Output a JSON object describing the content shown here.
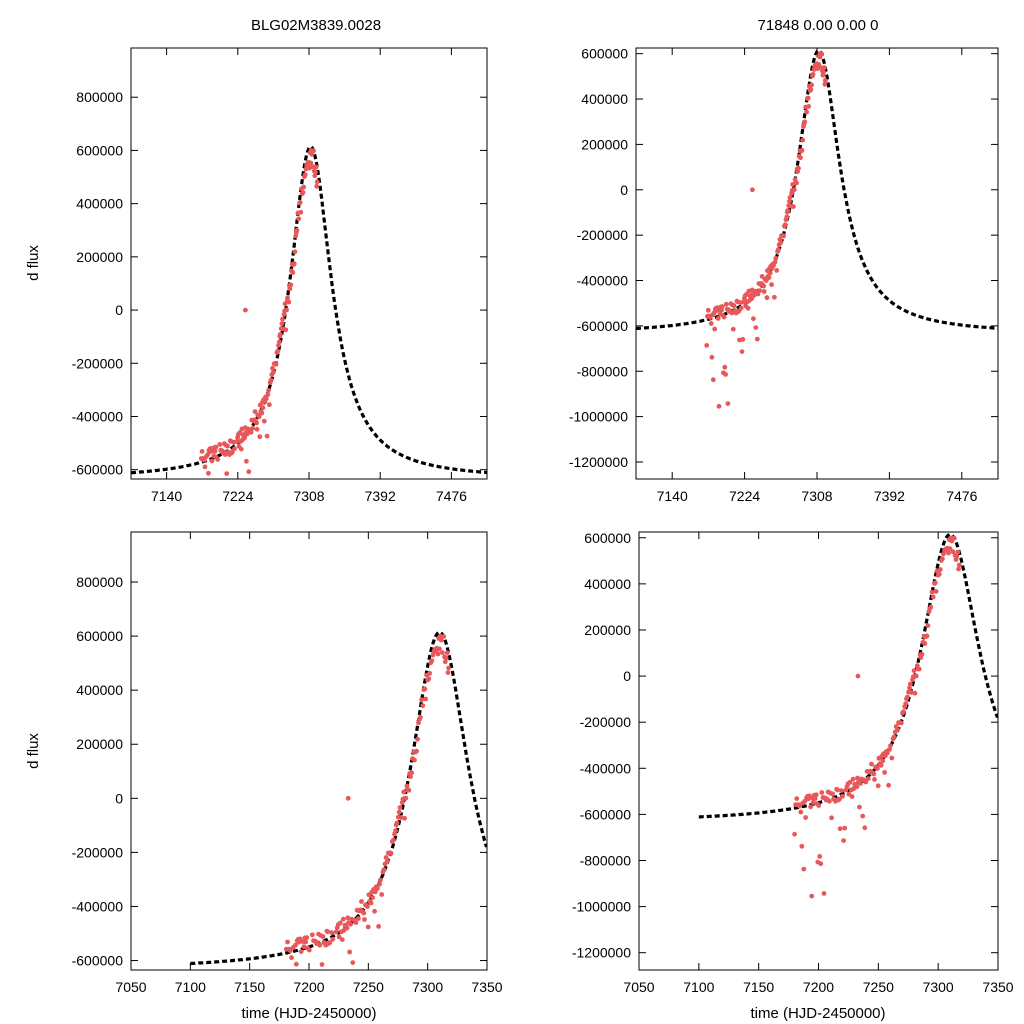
{
  "figure": {
    "title_left": "BLG02M3839.0028",
    "title_right": "71848  0.00  0.00  0",
    "point_color": "#e8585a",
    "curve_color": "#000000"
  },
  "chart_data": [
    {
      "type": "scatter",
      "panel": "top-left",
      "xlabel": "",
      "ylabel": "d flux",
      "xlim": [
        7098,
        7518
      ],
      "ylim": [
        -635000,
        985000
      ],
      "xticks": [
        7140,
        7224,
        7308,
        7392,
        7476
      ],
      "yticks": [
        -600000,
        -400000,
        -200000,
        0,
        200000,
        400000,
        600000,
        800000
      ],
      "ytick_labels": [
        "-600000",
        "-400000",
        "-200000",
        "0",
        "200000",
        "400000",
        "600000",
        "800000"
      ],
      "model": {
        "t0": 7310,
        "tE": 30,
        "base": -636000,
        "amp": 1250000
      },
      "points": {
        "start": 7180,
        "end": 7318,
        "outlier": [
          7233,
          0
        ]
      },
      "series": [
        {
          "name": "observed flux",
          "kind": "points"
        },
        {
          "name": "model fit",
          "kind": "dashed-line"
        }
      ]
    },
    {
      "type": "scatter",
      "panel": "top-right",
      "xlabel": "",
      "ylabel": "",
      "xlim": [
        7098,
        7518
      ],
      "ylim": [
        -1275000,
        625000
      ],
      "xticks": [
        7140,
        7224,
        7308,
        7392,
        7476
      ],
      "yticks": [
        -1200000,
        -1000000,
        -800000,
        -600000,
        -400000,
        -200000,
        0,
        200000,
        400000,
        600000
      ],
      "ytick_labels": [
        "-1200000",
        "-1000000",
        "-800000",
        "-600000",
        "-400000",
        "-200000",
        "0",
        "200000",
        "400000",
        "600000"
      ],
      "model": {
        "t0": 7310,
        "tE": 30,
        "base": -636000,
        "amp": 1250000
      },
      "points": {
        "start": 7180,
        "end": 7318,
        "outlier": [
          7233,
          0
        ]
      },
      "series": [
        {
          "name": "observed flux",
          "kind": "points"
        },
        {
          "name": "model fit",
          "kind": "dashed-line"
        }
      ]
    },
    {
      "type": "scatter",
      "panel": "bottom-left",
      "xlabel": "time (HJD-2450000)",
      "ylabel": "d flux",
      "xlim": [
        7050,
        7350
      ],
      "ylim": [
        -635000,
        985000
      ],
      "xticks": [
        7050,
        7100,
        7150,
        7200,
        7250,
        7300,
        7350
      ],
      "yticks": [
        -600000,
        -400000,
        -200000,
        0,
        200000,
        400000,
        600000,
        800000
      ],
      "ytick_labels": [
        "-600000",
        "-400000",
        "-200000",
        "0",
        "200000",
        "400000",
        "600000",
        "800000"
      ],
      "model": {
        "t0": 7310,
        "tE": 30,
        "base": -636000,
        "amp": 1250000
      },
      "curve_range": [
        7100,
        7350
      ],
      "points": {
        "start": 7180,
        "end": 7318,
        "outlier": [
          7233,
          0
        ]
      },
      "series": [
        {
          "name": "observed flux",
          "kind": "points"
        },
        {
          "name": "model fit",
          "kind": "dashed-line"
        }
      ]
    },
    {
      "type": "scatter",
      "panel": "bottom-right",
      "xlabel": "time (HJD-2450000)",
      "ylabel": "",
      "xlim": [
        7050,
        7350
      ],
      "ylim": [
        -1275000,
        625000
      ],
      "xticks": [
        7050,
        7100,
        7150,
        7200,
        7250,
        7300,
        7350
      ],
      "yticks": [
        -1200000,
        -1000000,
        -800000,
        -600000,
        -400000,
        -200000,
        0,
        200000,
        400000,
        600000
      ],
      "ytick_labels": [
        "-1200000",
        "-1000000",
        "-800000",
        "-600000",
        "-400000",
        "-200000",
        "0",
        "200000",
        "400000",
        "600000"
      ],
      "model": {
        "t0": 7310,
        "tE": 30,
        "base": -636000,
        "amp": 1250000
      },
      "curve_range": [
        7100,
        7350
      ],
      "points": {
        "start": 7180,
        "end": 7318,
        "outlier": [
          7233,
          0
        ]
      },
      "series": [
        {
          "name": "observed flux",
          "kind": "points"
        },
        {
          "name": "model fit",
          "kind": "dashed-line"
        }
      ]
    }
  ]
}
